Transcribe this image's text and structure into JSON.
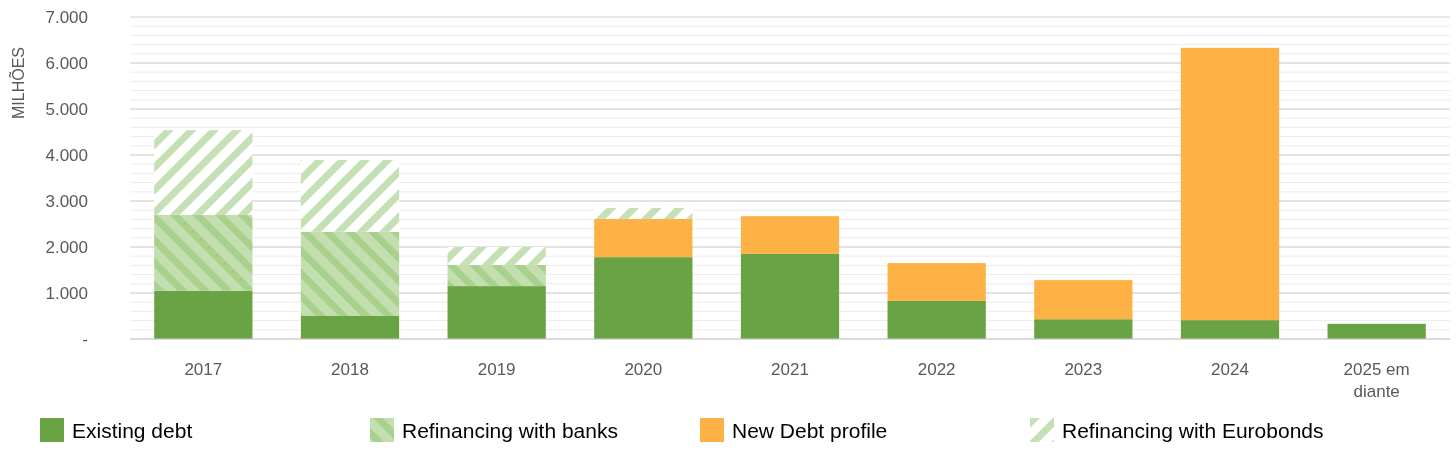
{
  "chart_data": {
    "type": "bar",
    "stacked": true,
    "ylabel": "MILHÕES",
    "categories": [
      "2017",
      "2018",
      "2019",
      "2020",
      "2021",
      "2022",
      "2023",
      "2024",
      "2025 em diante"
    ],
    "series": [
      {
        "name": "Existing debt",
        "color": "#6aa343",
        "values": [
          1050,
          500,
          1150,
          1780,
          1850,
          830,
          430,
          410,
          330
        ]
      },
      {
        "name": "Refinancing with banks",
        "color": "#a9d18e",
        "values": [
          1650,
          1830,
          460,
          0,
          0,
          0,
          0,
          0,
          0
        ]
      },
      {
        "name": "New Debt profile",
        "color": "#feb144",
        "values": [
          0,
          0,
          0,
          830,
          820,
          820,
          850,
          5920,
          0
        ]
      },
      {
        "name": "Refinancing with Eurobonds",
        "color": "#c5e0b4",
        "values": [
          1840,
          1560,
          390,
          240,
          0,
          0,
          0,
          0,
          0
        ]
      }
    ],
    "ylim": [
      0,
      7000
    ],
    "yticks": [
      {
        "value": 0,
        "label": "-"
      },
      {
        "value": 1000,
        "label": "1.000"
      },
      {
        "value": 2000,
        "label": "2.000"
      },
      {
        "value": 3000,
        "label": "3.000"
      },
      {
        "value": 4000,
        "label": "4.000"
      },
      {
        "value": 5000,
        "label": "5.000"
      },
      {
        "value": 6000,
        "label": "6.000"
      },
      {
        "value": 7000,
        "label": "7.000"
      }
    ],
    "grid": true,
    "legend": "bottom"
  }
}
